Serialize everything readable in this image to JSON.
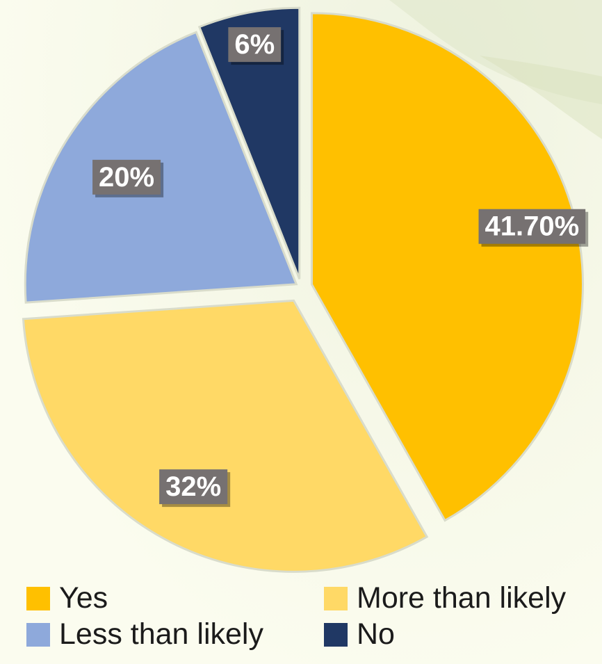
{
  "chart_data": {
    "type": "pie",
    "slices": [
      {
        "label": "Yes",
        "value": 41.7,
        "display": "41.70%",
        "color": "#FFC000"
      },
      {
        "label": "More than likely",
        "value": 32,
        "display": "32%",
        "color": "#FFD966"
      },
      {
        "label": "Less than likely",
        "value": 20,
        "display": "20%",
        "color": "#8EA9DB"
      },
      {
        "label": "No",
        "value": 6,
        "display": "6%",
        "color": "#203864"
      }
    ],
    "legend_position": "bottom",
    "data_label_style": {
      "background": "#767171",
      "text_color": "#FFFFFF"
    }
  },
  "legend": {
    "items": [
      {
        "label": "Yes",
        "color": "#FFC000"
      },
      {
        "label": "More than likely",
        "color": "#FFD966"
      },
      {
        "label": "Less than likely",
        "color": "#8EA9DB"
      },
      {
        "label": "No",
        "color": "#203864"
      }
    ]
  }
}
